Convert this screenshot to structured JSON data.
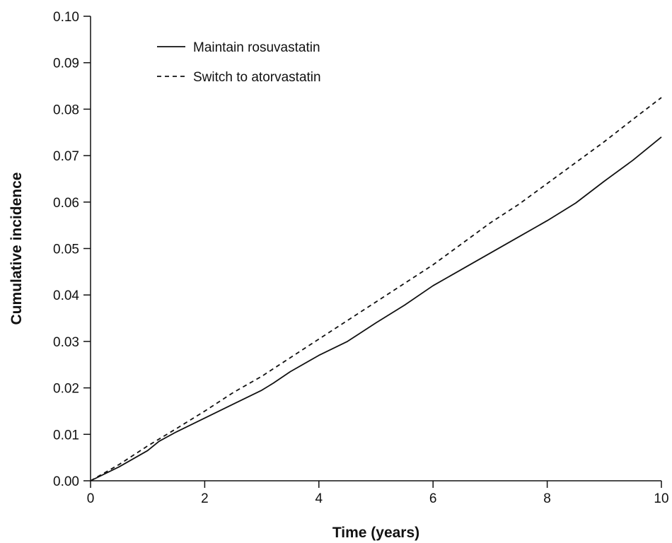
{
  "chart_data": {
    "type": "line",
    "title": "",
    "xlabel": "Time (years)",
    "ylabel": "Cumulative incidence",
    "xlim": [
      0,
      10
    ],
    "ylim": [
      0,
      0.1
    ],
    "x_ticks": [
      0,
      2,
      4,
      6,
      8,
      10
    ],
    "x_tick_labels": [
      "0",
      "2",
      "4",
      "6",
      "8",
      "10"
    ],
    "y_ticks": [
      0,
      0.01,
      0.02,
      0.03,
      0.04,
      0.05,
      0.06,
      0.07,
      0.08,
      0.09,
      0.1
    ],
    "y_tick_labels": [
      "0.00",
      "0.01",
      "0.02",
      "0.03",
      "0.04",
      "0.05",
      "0.06",
      "0.07",
      "0.08",
      "0.09",
      "0.10"
    ],
    "grid": false,
    "legend_position": "top-left",
    "series": [
      {
        "name": "Maintain rosuvastatin",
        "style": "solid",
        "color": "#111111",
        "x": [
          0,
          0.5,
          1,
          1.2,
          1.5,
          2,
          2.5,
          3,
          3.2,
          3.5,
          4,
          4.5,
          5,
          5.5,
          6,
          6.5,
          7,
          7.5,
          8,
          8.5,
          9,
          9.5,
          10
        ],
        "y": [
          0,
          0.003,
          0.0065,
          0.0085,
          0.0105,
          0.0135,
          0.0165,
          0.0195,
          0.021,
          0.0235,
          0.027,
          0.03,
          0.034,
          0.0378,
          0.042,
          0.0455,
          0.049,
          0.0525,
          0.056,
          0.0598,
          0.0645,
          0.069,
          0.074
        ]
      },
      {
        "name": "Switch to atorvastatin",
        "style": "dashed",
        "color": "#111111",
        "x": [
          0,
          0.5,
          1,
          1.5,
          2,
          2.5,
          3,
          3.5,
          4,
          4.5,
          5,
          5.5,
          6,
          6.5,
          7,
          7.5,
          8,
          8.5,
          9,
          9.5,
          10
        ],
        "y": [
          0,
          0.0035,
          0.0075,
          0.0112,
          0.015,
          0.019,
          0.0225,
          0.0265,
          0.0305,
          0.0345,
          0.0385,
          0.0425,
          0.0465,
          0.051,
          0.0555,
          0.0595,
          0.064,
          0.0685,
          0.073,
          0.0778,
          0.0825
        ]
      }
    ]
  }
}
